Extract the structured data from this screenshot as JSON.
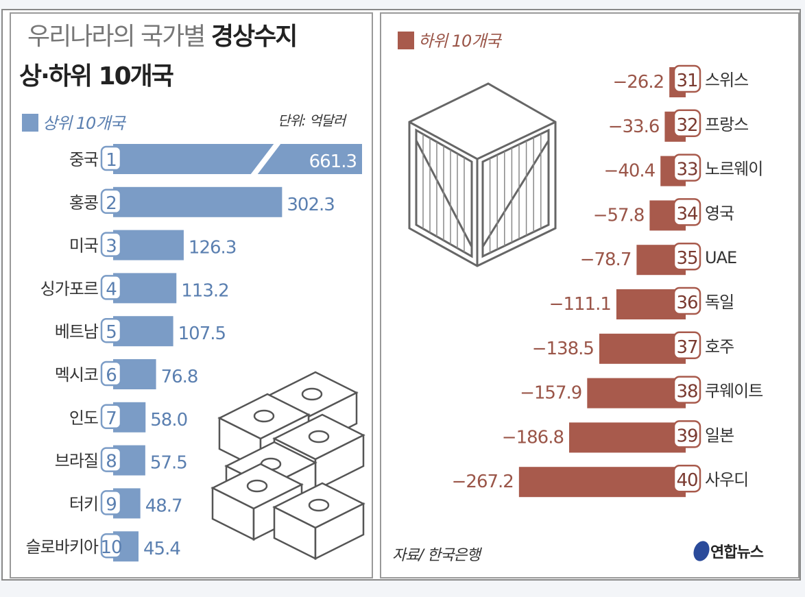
{
  "title": {
    "light": "우리나라의 국가별",
    "bold": "경상수지",
    "line2": "상·하위 10개국"
  },
  "unit": "단위: 억달러",
  "source": "자료/ 한국은행",
  "logo": "연합뉴스",
  "colors": {
    "top": "#7b9cc6",
    "bottom": "#a85a4c",
    "topText": "#5a7fb0",
    "bottomText": "#9a5548"
  },
  "chart_data": [
    {
      "type": "bar",
      "legend": "상위 10개국",
      "ranks": [
        "1",
        "2",
        "3",
        "4",
        "5",
        "6",
        "7",
        "8",
        "9",
        "10"
      ],
      "categories": [
        "중국",
        "홍콩",
        "미국",
        "싱가포르",
        "베트남",
        "멕시코",
        "인도",
        "브라질",
        "터키",
        "슬로바키아"
      ],
      "values": [
        661.3,
        302.3,
        126.3,
        113.2,
        107.5,
        76.8,
        58.0,
        57.5,
        48.7,
        45.4
      ],
      "value_labels": [
        "661.3",
        "302.3",
        "126.3",
        "113.2",
        "107.5",
        "76.8",
        "58.0",
        "57.5",
        "48.7",
        "45.4"
      ],
      "broken_axis_bar": "중국"
    },
    {
      "type": "bar",
      "legend": "하위 10개국",
      "ranks": [
        "31",
        "32",
        "33",
        "34",
        "35",
        "36",
        "37",
        "38",
        "39",
        "40"
      ],
      "categories": [
        "스위스",
        "프랑스",
        "노르웨이",
        "영국",
        "UAE",
        "독일",
        "호주",
        "쿠웨이트",
        "일본",
        "사우디"
      ],
      "values": [
        -26.2,
        -33.6,
        -40.4,
        -57.8,
        -78.7,
        -111.1,
        -138.5,
        -157.9,
        -186.8,
        -267.2
      ],
      "value_labels": [
        "−26.2",
        "−33.6",
        "−40.4",
        "−57.8",
        "−78.7",
        "−111.1",
        "−138.5",
        "−157.9",
        "−186.8",
        "−267.2"
      ]
    }
  ]
}
